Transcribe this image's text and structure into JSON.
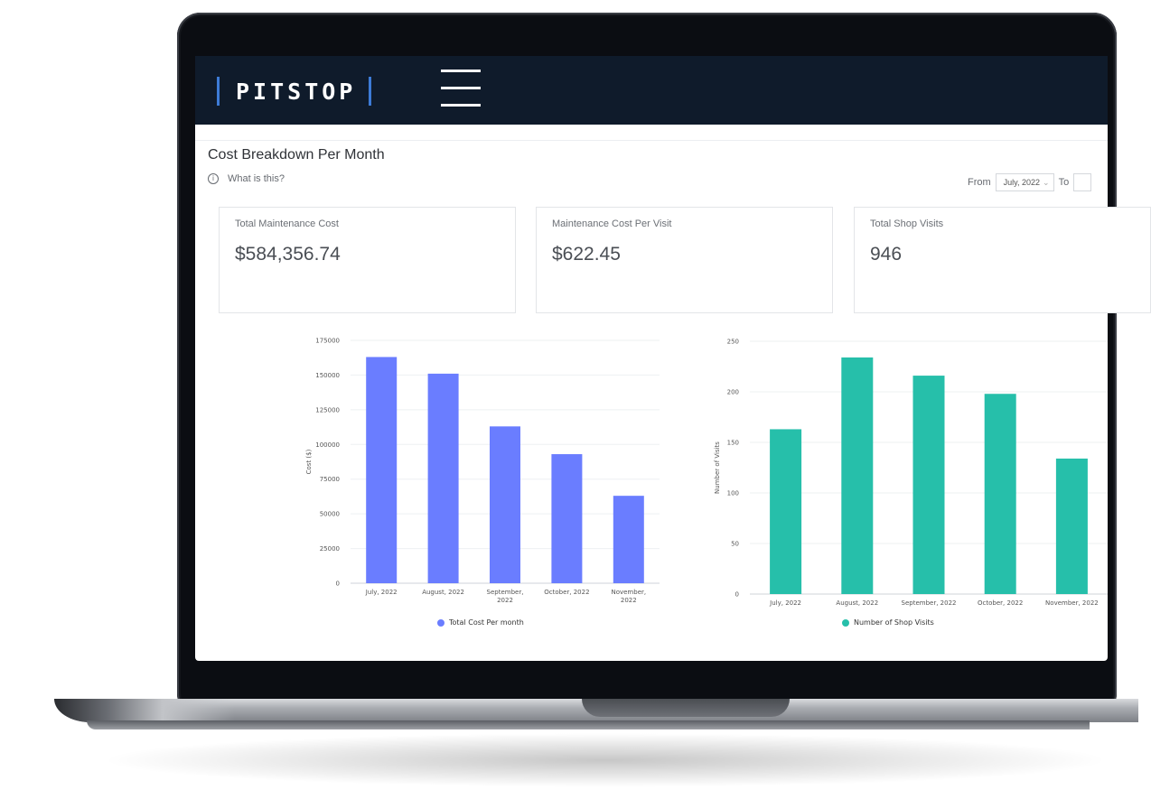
{
  "header": {
    "brand": "PITSTOP"
  },
  "page": {
    "title": "Cost Breakdown Per Month",
    "help_text": "What is this?"
  },
  "range": {
    "from_label": "From",
    "from_value": "July, 2022",
    "to_label": "To"
  },
  "cards": [
    {
      "label": "Total Maintenance Cost",
      "value": "$584,356.74"
    },
    {
      "label": "Maintenance Cost Per Visit",
      "value": "$622.45"
    },
    {
      "label": "Total Shop Visits",
      "value": "946"
    }
  ],
  "chart_data": [
    {
      "type": "bar",
      "categories": [
        "July, 2022",
        "August, 2022",
        "September, 2022",
        "October, 2022",
        "November, 2022"
      ],
      "series": [
        {
          "name": "Total Cost Per month",
          "values": [
            163000,
            151000,
            113000,
            93000,
            63000
          ],
          "color": "#6a7dff"
        }
      ],
      "ylabel": "Cost ($)",
      "ylim": [
        0,
        175000
      ],
      "yticks": [
        0,
        25000,
        50000,
        75000,
        100000,
        125000,
        150000,
        175000
      ],
      "tick_labels": [
        "July, 2022",
        "August, 2022",
        "September,\n2022",
        "October, 2022",
        "November,\n2022"
      ],
      "legend": "bottom"
    },
    {
      "type": "bar",
      "categories": [
        "July, 2022",
        "August, 2022",
        "September, 2022",
        "October, 2022",
        "November, 2022"
      ],
      "series": [
        {
          "name": "Number of Shop Visits",
          "values": [
            163,
            234,
            216,
            198,
            134
          ],
          "color": "#26bfaa"
        }
      ],
      "ylabel": "Number of Visits",
      "ylim": [
        0,
        250
      ],
      "yticks": [
        0,
        50,
        100,
        150,
        200,
        250
      ],
      "tick_labels": [
        "July, 2022",
        "August, 2022",
        "September, 2022",
        "October, 2022",
        "November, 2022"
      ],
      "legend": "bottom"
    }
  ]
}
